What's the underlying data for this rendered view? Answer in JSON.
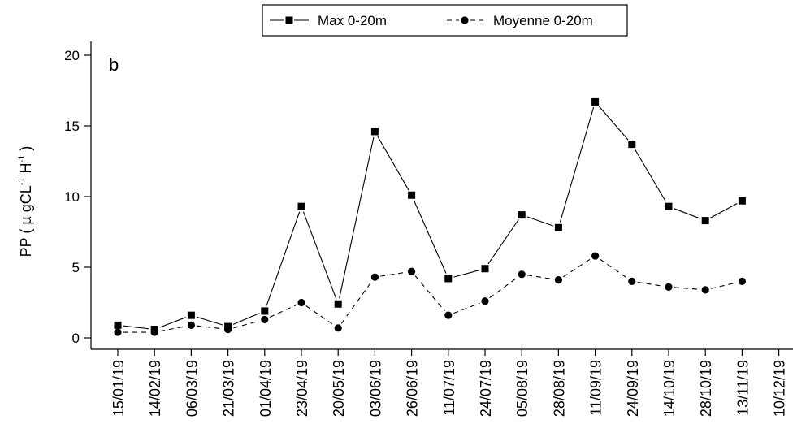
{
  "chart_data": {
    "type": "line",
    "panel_label": "b",
    "ylabel": {
      "prefix": "PP ( ",
      "mu": "µ",
      "unit_g": " gCL",
      "sup1": "-1",
      "unit_h": " H",
      "sup2": "-1",
      "suffix": " )"
    },
    "xlabel": "",
    "ylim": [
      0,
      20
    ],
    "yticks": [
      0,
      5,
      10,
      15,
      20
    ],
    "grid": false,
    "legend_position": "top-center",
    "categories": [
      "15/01/19",
      "14/02/19",
      "06/03/19",
      "21/03/19",
      "01/04/19",
      "23/04/19",
      "20/05/19",
      "03/06/19",
      "26/06/19",
      "11/07/19",
      "24/07/19",
      "05/08/19",
      "28/08/19",
      "11/09/19",
      "24/09/19",
      "14/10/19",
      "28/10/19",
      "13/11/19",
      "10/12/19"
    ],
    "series": [
      {
        "name": "Max 0-20m",
        "style": "solid",
        "marker": "square",
        "color": "#000000",
        "values": [
          0.9,
          0.6,
          1.6,
          0.8,
          1.9,
          9.3,
          2.4,
          14.6,
          10.1,
          4.2,
          4.9,
          8.7,
          7.8,
          16.7,
          13.7,
          9.3,
          8.3,
          9.7,
          null
        ]
      },
      {
        "name": "Moyenne 0-20m",
        "style": "dashed",
        "marker": "circle",
        "color": "#000000",
        "values": [
          0.4,
          0.4,
          0.9,
          0.6,
          1.3,
          2.5,
          0.7,
          4.3,
          4.7,
          1.6,
          2.6,
          4.5,
          4.1,
          5.8,
          4.0,
          3.6,
          3.4,
          4.0,
          null
        ]
      }
    ]
  }
}
